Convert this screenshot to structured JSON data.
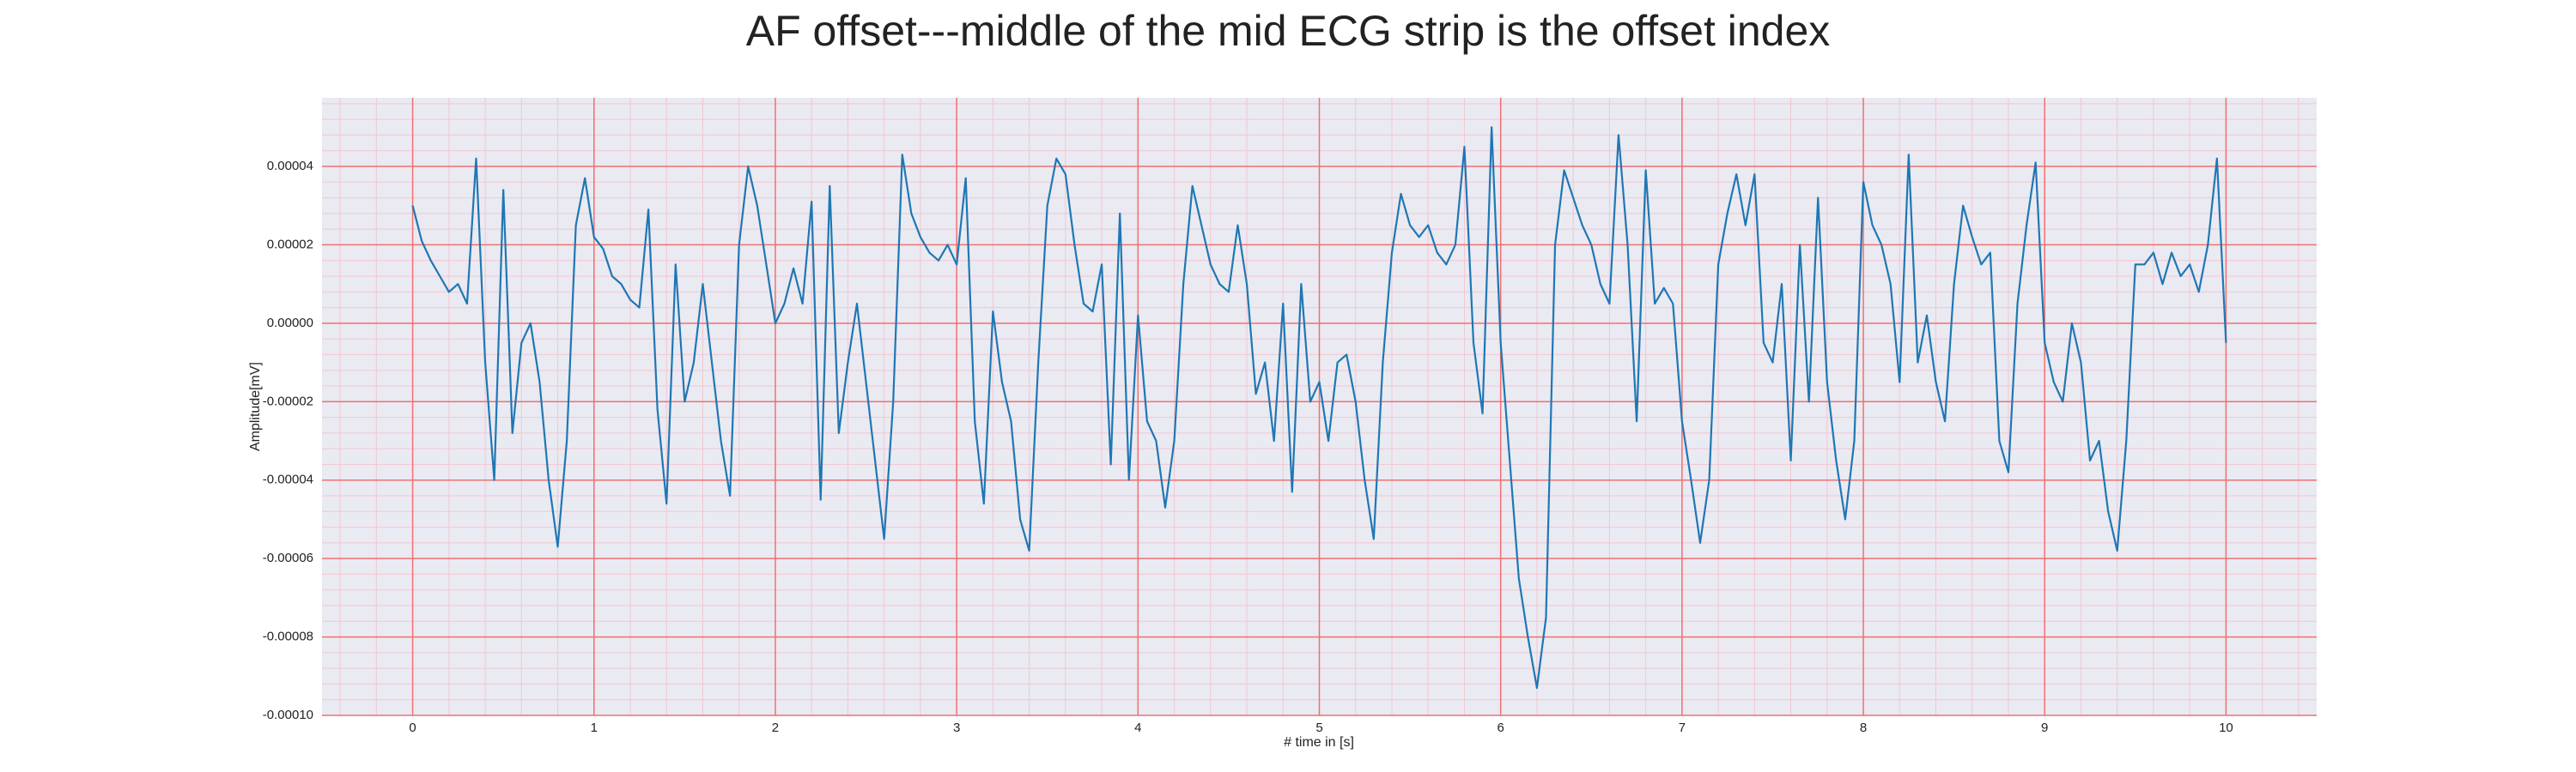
{
  "chart_data": {
    "type": "line",
    "title": "AF offset---middle of the mid ECG strip is the offset index",
    "xlabel": "# time in [s]",
    "ylabel": "Amplitude[mV]",
    "xlim": [
      -0.5,
      10.5
    ],
    "xticks": [
      0,
      1,
      2,
      3,
      4,
      5,
      6,
      7,
      8,
      9,
      10
    ],
    "ylim": [
      -0.0001,
      5.75e-05
    ],
    "yticks": [
      {
        "value": -0.0001,
        "label": "-0.00010"
      },
      {
        "value": -8e-05,
        "label": "-0.00008"
      },
      {
        "value": -6e-05,
        "label": "-0.00006"
      },
      {
        "value": -4e-05,
        "label": "-0.00004"
      },
      {
        "value": -2e-05,
        "label": "-0.00002"
      },
      {
        "value": 0,
        "label": "0.00000"
      },
      {
        "value": 2e-05,
        "label": "0.00002"
      },
      {
        "value": 4e-05,
        "label": "0.00004"
      }
    ],
    "grid": true,
    "minor_grid": true,
    "x": [
      0,
      0.05,
      0.1,
      0.15,
      0.2,
      0.25,
      0.3,
      0.35,
      0.4,
      0.45,
      0.5,
      0.55,
      0.6,
      0.65,
      0.7,
      0.75,
      0.8,
      0.85,
      0.9,
      0.95,
      1,
      1.05,
      1.1,
      1.15,
      1.2,
      1.25,
      1.3,
      1.35,
      1.4,
      1.45,
      1.5,
      1.55,
      1.6,
      1.65,
      1.7,
      1.75,
      1.8,
      1.85,
      1.9,
      1.95,
      2,
      2.05,
      2.1,
      2.15,
      2.2,
      2.25,
      2.3,
      2.35,
      2.4,
      2.45,
      2.5,
      2.55,
      2.6,
      2.65,
      2.7,
      2.75,
      2.8,
      2.85,
      2.9,
      2.95,
      3,
      3.05,
      3.1,
      3.15,
      3.2,
      3.25,
      3.3,
      3.35,
      3.4,
      3.45,
      3.5,
      3.55,
      3.6,
      3.65,
      3.7,
      3.75,
      3.8,
      3.85,
      3.9,
      3.95,
      4,
      4.05,
      4.1,
      4.15,
      4.2,
      4.25,
      4.3,
      4.35,
      4.4,
      4.45,
      4.5,
      4.55,
      4.6,
      4.65,
      4.7,
      4.75,
      4.8,
      4.85,
      4.9,
      4.95,
      5,
      5.05,
      5.1,
      5.15,
      5.2,
      5.25,
      5.3,
      5.35,
      5.4,
      5.45,
      5.5,
      5.55,
      5.6,
      5.65,
      5.7,
      5.75,
      5.8,
      5.85,
      5.9,
      5.95,
      6,
      6.05,
      6.1,
      6.15,
      6.2,
      6.25,
      6.3,
      6.35,
      6.4,
      6.45,
      6.5,
      6.55,
      6.6,
      6.65,
      6.7,
      6.75,
      6.8,
      6.85,
      6.9,
      6.95,
      7,
      7.05,
      7.1,
      7.15,
      7.2,
      7.25,
      7.3,
      7.35,
      7.4,
      7.45,
      7.5,
      7.55,
      7.6,
      7.65,
      7.7,
      7.75,
      7.8,
      7.85,
      7.9,
      7.95,
      8,
      8.05,
      8.1,
      8.15,
      8.2,
      8.25,
      8.3,
      8.35,
      8.4,
      8.45,
      8.5,
      8.55,
      8.6,
      8.65,
      8.7,
      8.75,
      8.8,
      8.85,
      8.9,
      8.95,
      9,
      9.05,
      9.1,
      9.15,
      9.2,
      9.25,
      9.3,
      9.35,
      9.4,
      9.45,
      9.5,
      9.55,
      9.6,
      9.65,
      9.7,
      9.75,
      9.8,
      9.85,
      9.9,
      9.95,
      10
    ],
    "series": [
      {
        "color": "#1f77b4",
        "values": [
          3e-05,
          2.1e-05,
          1.6e-05,
          1.2e-05,
          8e-06,
          1e-05,
          5e-06,
          4.2e-05,
          -1e-05,
          -4e-05,
          3.4e-05,
          -2.8e-05,
          -5e-06,
          0.0,
          -1.5e-05,
          -4e-05,
          -5.7e-05,
          -3e-05,
          2.5e-05,
          3.7e-05,
          2.2e-05,
          1.9e-05,
          1.2e-05,
          1e-05,
          6e-06,
          4e-06,
          2.9e-05,
          -2.2e-05,
          -4.6e-05,
          1.5e-05,
          -2e-05,
          -1e-05,
          1e-05,
          -1e-05,
          -3e-05,
          -4.4e-05,
          2e-05,
          4e-05,
          3e-05,
          1.5e-05,
          0.0,
          5e-06,
          1.4e-05,
          5e-06,
          3.1e-05,
          -4.5e-05,
          3.5e-05,
          -2.8e-05,
          -1e-05,
          5e-06,
          -1.5e-05,
          -3.5e-05,
          -5.5e-05,
          -2e-05,
          4.3e-05,
          2.8e-05,
          2.2e-05,
          1.8e-05,
          1.6e-05,
          2e-05,
          1.5e-05,
          3.7e-05,
          -2.5e-05,
          -4.6e-05,
          3e-06,
          -1.5e-05,
          -2.5e-05,
          -5e-05,
          -5.8e-05,
          -1e-05,
          3e-05,
          4.2e-05,
          3.8e-05,
          2e-05,
          5e-06,
          3e-06,
          1.5e-05,
          -3.6e-05,
          2.8e-05,
          -4e-05,
          2e-06,
          -2.5e-05,
          -3e-05,
          -4.7e-05,
          -3e-05,
          1e-05,
          3.5e-05,
          2.5e-05,
          1.5e-05,
          1e-05,
          8e-06,
          2.5e-05,
          1e-05,
          -1.8e-05,
          -1e-05,
          -3e-05,
          5e-06,
          -4.3e-05,
          1e-05,
          -2e-05,
          -1.5e-05,
          -3e-05,
          -1e-05,
          -8e-06,
          -2e-05,
          -4e-05,
          -5.5e-05,
          -1e-05,
          1.8e-05,
          3.3e-05,
          2.5e-05,
          2.2e-05,
          2.5e-05,
          1.8e-05,
          1.5e-05,
          2e-05,
          4.5e-05,
          -5e-06,
          -2.3e-05,
          5e-05,
          -5e-06,
          -3.5e-05,
          -6.5e-05,
          -8e-05,
          -9.3e-05,
          -7.5e-05,
          2e-05,
          3.9e-05,
          3.2e-05,
          2.5e-05,
          2e-05,
          1e-05,
          5e-06,
          4.8e-05,
          2e-05,
          -2.5e-05,
          3.9e-05,
          5e-06,
          9e-06,
          5e-06,
          -2.5e-05,
          -4e-05,
          -5.6e-05,
          -4e-05,
          1.5e-05,
          2.8e-05,
          3.8e-05,
          2.5e-05,
          3.8e-05,
          -5e-06,
          -1e-05,
          1e-05,
          -3.5e-05,
          2e-05,
          -2e-05,
          3.2e-05,
          -1.5e-05,
          -3.5e-05,
          -5e-05,
          -3e-05,
          3.6e-05,
          2.5e-05,
          2e-05,
          1e-05,
          -1.5e-05,
          4.3e-05,
          -1e-05,
          2e-06,
          -1.5e-05,
          -2.5e-05,
          1e-05,
          3e-05,
          2.2e-05,
          1.5e-05,
          1.8e-05,
          -3e-05,
          -3.8e-05,
          5e-06,
          2.5e-05,
          4.1e-05,
          -5e-06,
          -1.5e-05,
          -2e-05,
          0.0,
          -1e-05,
          -3.5e-05,
          -3e-05,
          -4.8e-05,
          -5.8e-05,
          -3e-05,
          1.5e-05,
          1.5e-05,
          1.8e-05,
          1e-05,
          1.8e-05,
          1.2e-05,
          1.5e-05,
          8e-06,
          2e-05,
          4.2e-05,
          -5e-06
        ]
      }
    ]
  }
}
